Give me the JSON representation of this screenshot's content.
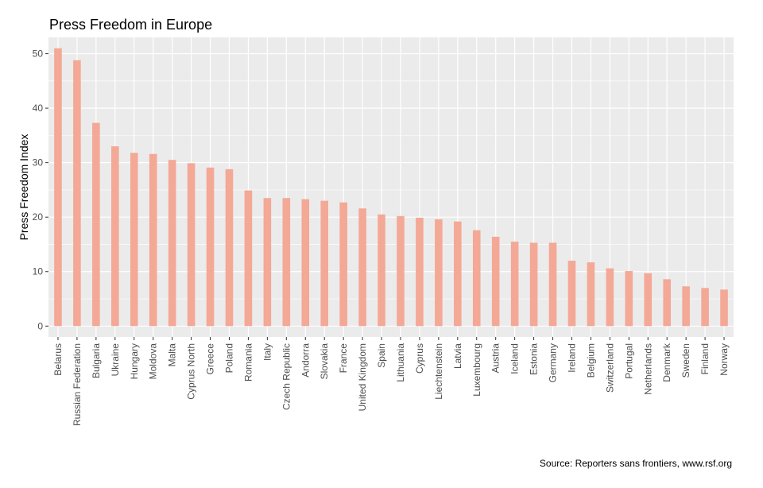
{
  "chart_data": {
    "type": "bar",
    "title": "Press Freedom in Europe",
    "xlabel": "",
    "ylabel": "Press Freedom Index",
    "caption": "Source: Reporters sans frontiers, www.rsf.org",
    "ylim": [
      -2,
      53
    ],
    "yticks": [
      0,
      10,
      20,
      30,
      40,
      50
    ],
    "grid": true,
    "bar_color": "#f4a896",
    "panel_color": "#ebebeb",
    "categories": [
      "Belarus",
      "Russian Federation",
      "Bulgaria",
      "Ukraine",
      "Hungary",
      "Moldova",
      "Malta",
      "Cyprus North",
      "Greece",
      "Poland",
      "Romania",
      "Italy",
      "Czech Republic",
      "Andorra",
      "Slovakia",
      "France",
      "United Kingdom",
      "Spain",
      "Lithuania",
      "Cyprus",
      "Liechtenstein",
      "Latvia",
      "Luxembourg",
      "Austria",
      "Iceland",
      "Estonia",
      "Germany",
      "Ireland",
      "Belgium",
      "Switzerland",
      "Portugal",
      "Netherlands",
      "Denmark",
      "Sweden",
      "Finland",
      "Norway"
    ],
    "values": [
      51.0,
      48.8,
      37.3,
      33.0,
      31.8,
      31.6,
      30.5,
      29.9,
      29.1,
      28.8,
      24.9,
      23.5,
      23.5,
      23.3,
      23.0,
      22.7,
      21.6,
      20.5,
      20.2,
      19.9,
      19.6,
      19.2,
      17.6,
      16.4,
      15.5,
      15.3,
      15.3,
      12.0,
      11.7,
      10.6,
      10.1,
      9.7,
      8.6,
      7.3,
      7.0,
      6.7
    ]
  }
}
